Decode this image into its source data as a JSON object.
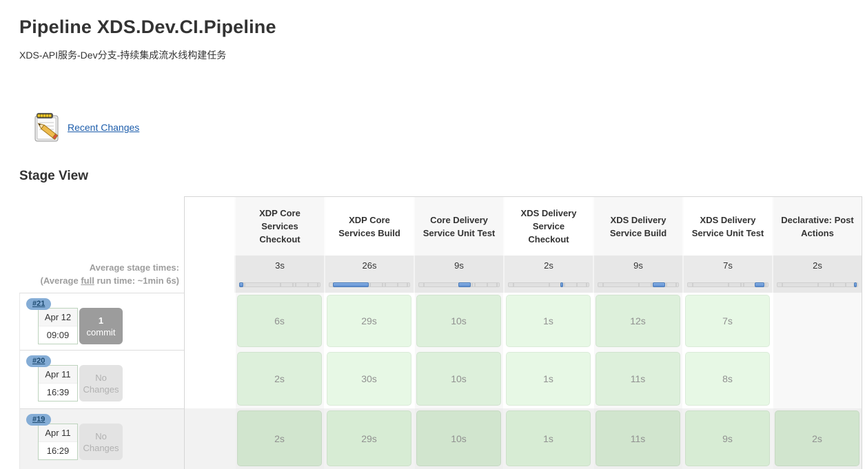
{
  "page": {
    "title": "Pipeline XDS.Dev.CI.Pipeline",
    "subtitle": "XDS-API服务-Dev分支-持续集成流水线构建任务",
    "recent_changes_label": "Recent Changes",
    "stage_view_heading": "Stage View"
  },
  "icons": {
    "recent_changes": "notepad-pencil-icon"
  },
  "colors": {
    "link_blue": "#1d5dab",
    "badge_blue": "#85add6",
    "bar_blue": "#5c8cd0",
    "success_green_light": "#e7f8e5",
    "success_green_shaded": "#d7ecd4",
    "commit_box_gray": "#9c9c9c",
    "no_changes_gray": "#e3e3e3"
  },
  "stage_view": {
    "avg_caption_line1": "Average stage times:",
    "avg_caption_line2_pre": "(Average ",
    "avg_caption_line2_underlined": "full",
    "avg_caption_line2_post": " run time: ~1min 6s)",
    "stages": [
      "XDP Core Services Checkout",
      "XDP Core Services Build",
      "Core Delivery Service Unit Test",
      "XDS Delivery Service Checkout",
      "XDS Delivery Service Build",
      "XDS Delivery Service Unit Test",
      "Declarative: Post Actions"
    ],
    "average_times": [
      "3s",
      "26s",
      "9s",
      "2s",
      "9s",
      "7s",
      "2s"
    ],
    "average_seconds": [
      3,
      26,
      9,
      2,
      9,
      7,
      2
    ],
    "builds": [
      {
        "id": "#21",
        "date": "Apr 12",
        "time": "09:09",
        "changes_line1": "1",
        "changes_line2": "commit",
        "changes_type": "commit",
        "durations": [
          "6s",
          "29s",
          "10s",
          "1s",
          "12s",
          "7s",
          null
        ],
        "shaded": false
      },
      {
        "id": "#20",
        "date": "Apr 11",
        "time": "16:39",
        "changes_line1": "No",
        "changes_line2": "Changes",
        "changes_type": "none",
        "durations": [
          "2s",
          "30s",
          "10s",
          "1s",
          "11s",
          "8s",
          null
        ],
        "shaded": false
      },
      {
        "id": "#19",
        "date": "Apr 11",
        "time": "16:29",
        "changes_line1": "No",
        "changes_line2": "Changes",
        "changes_type": "none",
        "durations": [
          "2s",
          "29s",
          "10s",
          "1s",
          "11s",
          "9s",
          "2s"
        ],
        "shaded": true
      }
    ]
  },
  "chart_data": {
    "type": "table",
    "title": "Stage View",
    "columns": [
      "XDP Core Services Checkout",
      "XDP Core Services Build",
      "Core Delivery Service Unit Test",
      "XDS Delivery Service Checkout",
      "XDS Delivery Service Build",
      "XDS Delivery Service Unit Test",
      "Declarative: Post Actions"
    ],
    "average_stage_seconds": [
      3,
      26,
      9,
      2,
      9,
      7,
      2
    ],
    "rows": [
      {
        "build": "#21",
        "values_seconds": [
          6,
          29,
          10,
          1,
          12,
          7,
          null
        ]
      },
      {
        "build": "#20",
        "values_seconds": [
          2,
          30,
          10,
          1,
          11,
          8,
          null
        ]
      },
      {
        "build": "#19",
        "values_seconds": [
          2,
          29,
          10,
          1,
          11,
          9,
          2
        ]
      }
    ]
  }
}
